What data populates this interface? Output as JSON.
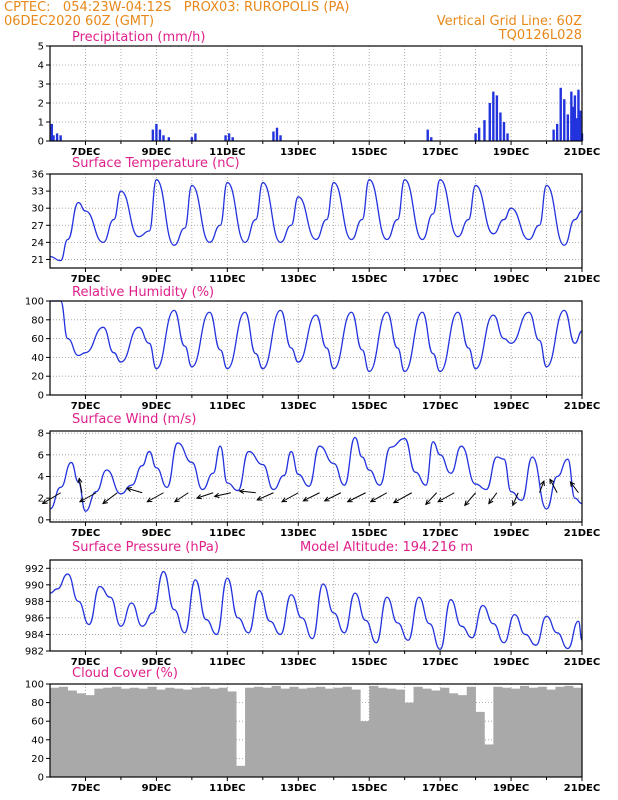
{
  "header": {
    "line1": "CPTEC:   054:23W-04:12S   PROX03: RUROPOLIS (PA)",
    "line2": "06DEC2020 60Z (GMT)",
    "right1": "Vertical Grid Line: 60Z",
    "right2": "TQ0126L028"
  },
  "colors": {
    "header": "#e8881a",
    "title": "#e0208a",
    "line": "#2233dd",
    "cloud": "#a9a9a9",
    "grid": "#9a9a9a"
  },
  "chart_data": [
    {
      "type": "bar",
      "title": "Precipitation (mm/h)",
      "x_range": [
        6.0,
        21.0
      ],
      "x_ticks": [
        "7DEC",
        "9DEC",
        "11DEC",
        "13DEC",
        "15DEC",
        "17DEC",
        "19DEC",
        "21DEC"
      ],
      "ylim": [
        0,
        5
      ],
      "y_ticks": [
        0,
        1,
        2,
        3,
        4,
        5
      ],
      "x": [
        6.05,
        6.1,
        6.2,
        6.3,
        8.9,
        9.0,
        9.1,
        9.2,
        9.35,
        10.0,
        10.1,
        10.95,
        11.05,
        11.15,
        12.3,
        12.4,
        12.5,
        16.65,
        16.75,
        18.0,
        18.1,
        18.25,
        18.4,
        18.5,
        18.6,
        18.7,
        18.8,
        18.9,
        20.2,
        20.3,
        20.4,
        20.5,
        20.6,
        20.7,
        20.75,
        20.8,
        20.85,
        20.9,
        20.95,
        21.0
      ],
      "values": [
        0.9,
        0.3,
        0.4,
        0.3,
        0.6,
        0.9,
        0.6,
        0.3,
        0.2,
        0.2,
        0.4,
        0.3,
        0.4,
        0.2,
        0.5,
        0.7,
        0.3,
        0.6,
        0.2,
        0.4,
        0.7,
        1.1,
        2.0,
        2.6,
        2.4,
        1.5,
        1.0,
        0.4,
        0.6,
        0.9,
        2.8,
        2.2,
        1.4,
        2.6,
        1.8,
        2.4,
        1.2,
        2.7,
        1.6,
        0.4
      ]
    },
    {
      "type": "line",
      "title": "Surface Temperature (nC)",
      "x_range": [
        6.0,
        21.0
      ],
      "x_ticks": [
        "7DEC",
        "9DEC",
        "11DEC",
        "13DEC",
        "15DEC",
        "17DEC",
        "19DEC",
        "21DEC"
      ],
      "ylim": [
        19.5,
        36
      ],
      "y_ticks": [
        21,
        24,
        27,
        30,
        33,
        36
      ],
      "x": [
        6.0,
        6.3,
        6.5,
        6.8,
        7.0,
        7.5,
        7.8,
        8.0,
        8.5,
        8.8,
        9.0,
        9.5,
        9.8,
        10.0,
        10.5,
        10.8,
        11.0,
        11.5,
        11.8,
        12.0,
        12.5,
        12.8,
        13.0,
        13.5,
        13.8,
        14.0,
        14.5,
        14.8,
        15.0,
        15.5,
        15.8,
        16.0,
        16.5,
        16.8,
        17.0,
        17.5,
        17.8,
        18.0,
        18.5,
        18.8,
        19.0,
        19.5,
        19.8,
        20.0,
        20.5,
        20.8,
        21.0
      ],
      "values": [
        21.5,
        20.8,
        24.5,
        31.0,
        29.5,
        24.0,
        28.0,
        33.0,
        25.0,
        26.0,
        35.0,
        23.5,
        26.5,
        34.0,
        24.0,
        27.0,
        34.5,
        24.0,
        28.0,
        34.5,
        24.0,
        27.0,
        32.0,
        24.5,
        28.0,
        34.5,
        24.5,
        28.0,
        35.0,
        24.5,
        28.0,
        35.0,
        24.5,
        29.0,
        35.0,
        25.0,
        28.0,
        34.0,
        25.5,
        28.0,
        30.0,
        24.5,
        27.0,
        34.0,
        23.5,
        28.0,
        29.5
      ]
    },
    {
      "type": "line",
      "title": "Relative Humidity (%)",
      "x_range": [
        6.0,
        21.0
      ],
      "x_ticks": [
        "7DEC",
        "9DEC",
        "11DEC",
        "13DEC",
        "15DEC",
        "17DEC",
        "19DEC",
        "21DEC"
      ],
      "ylim": [
        0,
        100
      ],
      "y_ticks": [
        0,
        20,
        40,
        60,
        80,
        100
      ],
      "x": [
        6.0,
        6.3,
        6.5,
        6.8,
        7.0,
        7.5,
        7.8,
        8.0,
        8.5,
        8.8,
        9.0,
        9.5,
        9.8,
        10.0,
        10.5,
        10.8,
        11.0,
        11.5,
        11.8,
        12.0,
        12.5,
        12.8,
        13.0,
        13.5,
        13.8,
        14.0,
        14.5,
        14.8,
        15.0,
        15.5,
        15.8,
        16.0,
        16.5,
        16.8,
        17.0,
        17.5,
        17.8,
        18.0,
        18.5,
        18.8,
        19.0,
        19.5,
        19.8,
        20.0,
        20.5,
        20.8,
        21.0
      ],
      "values": [
        100,
        100,
        60,
        42,
        45,
        72,
        45,
        35,
        72,
        55,
        28,
        90,
        52,
        30,
        88,
        48,
        28,
        88,
        44,
        28,
        90,
        50,
        35,
        85,
        50,
        28,
        88,
        48,
        25,
        88,
        50,
        25,
        88,
        44,
        25,
        88,
        50,
        28,
        85,
        60,
        55,
        88,
        58,
        30,
        90,
        55,
        68
      ]
    },
    {
      "type": "line",
      "title": "Surface Wind (m/s)",
      "x_range": [
        6.0,
        21.0
      ],
      "x_ticks": [
        "7DEC",
        "9DEC",
        "11DEC",
        "13DEC",
        "15DEC",
        "17DEC",
        "19DEC",
        "21DEC"
      ],
      "ylim": [
        -0.2,
        8.2
      ],
      "y_ticks": [
        0,
        2,
        4,
        6,
        8
      ],
      "x": [
        6.0,
        6.3,
        6.6,
        6.8,
        7.0,
        7.3,
        7.6,
        8.0,
        8.3,
        8.6,
        8.8,
        9.0,
        9.3,
        9.6,
        10.0,
        10.3,
        10.6,
        10.8,
        11.0,
        11.3,
        11.6,
        12.0,
        12.3,
        12.6,
        12.8,
        13.0,
        13.3,
        13.6,
        14.0,
        14.3,
        14.6,
        14.8,
        15.0,
        15.3,
        15.6,
        16.0,
        16.3,
        16.6,
        16.8,
        17.0,
        17.3,
        17.6,
        18.0,
        18.3,
        18.6,
        18.8,
        19.0,
        19.3,
        19.6,
        20.0,
        20.3,
        20.6,
        20.8,
        21.0
      ],
      "values": [
        1.0,
        3.0,
        5.3,
        3.5,
        0.8,
        2.6,
        4.6,
        2.4,
        3.2,
        5.0,
        6.3,
        4.8,
        3.0,
        7.1,
        5.3,
        2.8,
        4.3,
        6.8,
        3.4,
        2.7,
        6.3,
        5.1,
        2.8,
        4.1,
        6.3,
        4.2,
        3.1,
        6.8,
        5.2,
        3.2,
        7.6,
        5.8,
        4.6,
        3.2,
        6.7,
        7.5,
        4.4,
        3.2,
        7.2,
        6.0,
        4.3,
        6.8,
        3.3,
        2.8,
        5.8,
        5.6,
        2.6,
        1.8,
        5.8,
        1.0,
        4.0,
        5.6,
        2.0,
        1.5
      ],
      "wind_barbs": [
        {
          "x": 6.3,
          "u": -2.0,
          "v": -1.2
        },
        {
          "x": 6.9,
          "u": -0.3,
          "v": 1.6
        },
        {
          "x": 7.3,
          "u": -1.8,
          "v": -1.0
        },
        {
          "x": 7.9,
          "u": -1.6,
          "v": -1.2
        },
        {
          "x": 8.6,
          "u": -1.7,
          "v": 0.5
        },
        {
          "x": 9.2,
          "u": -1.8,
          "v": -1.0
        },
        {
          "x": 9.9,
          "u": -1.5,
          "v": -1.0
        },
        {
          "x": 10.6,
          "u": -1.8,
          "v": -0.6
        },
        {
          "x": 11.1,
          "u": -1.8,
          "v": -0.4
        },
        {
          "x": 11.8,
          "u": -1.8,
          "v": 0.2
        },
        {
          "x": 12.3,
          "u": -1.8,
          "v": -0.8
        },
        {
          "x": 13.0,
          "u": -1.8,
          "v": -1.0
        },
        {
          "x": 13.6,
          "u": -1.8,
          "v": -0.9
        },
        {
          "x": 14.2,
          "u": -1.8,
          "v": -0.9
        },
        {
          "x": 14.9,
          "u": -2.0,
          "v": -1.0
        },
        {
          "x": 15.5,
          "u": -1.8,
          "v": -1.0
        },
        {
          "x": 16.2,
          "u": -2.0,
          "v": -1.1
        },
        {
          "x": 16.9,
          "u": -1.2,
          "v": -1.3
        },
        {
          "x": 17.4,
          "u": -1.8,
          "v": -1.0
        },
        {
          "x": 18.0,
          "u": -1.2,
          "v": -1.4
        },
        {
          "x": 18.6,
          "u": -0.9,
          "v": -1.2
        },
        {
          "x": 19.2,
          "u": -0.6,
          "v": -1.4
        },
        {
          "x": 19.8,
          "u": 0.5,
          "v": 1.3
        },
        {
          "x": 20.3,
          "u": -0.8,
          "v": 1.5
        },
        {
          "x": 20.9,
          "u": -0.9,
          "v": 1.2
        }
      ]
    },
    {
      "type": "line",
      "title": "Surface Pressure (hPa)",
      "annotation": "Model Altitude: 194.216 m",
      "x_range": [
        6.0,
        21.0
      ],
      "x_ticks": [
        "7DEC",
        "9DEC",
        "11DEC",
        "13DEC",
        "15DEC",
        "17DEC",
        "19DEC",
        "21DEC"
      ],
      "ylim": [
        982,
        993
      ],
      "y_ticks": [
        982,
        984,
        986,
        988,
        990,
        992
      ],
      "x": [
        6.0,
        6.2,
        6.5,
        6.8,
        7.1,
        7.4,
        7.7,
        8.0,
        8.3,
        8.6,
        8.9,
        9.2,
        9.5,
        9.8,
        10.1,
        10.4,
        10.7,
        11.0,
        11.3,
        11.6,
        11.9,
        12.2,
        12.5,
        12.8,
        13.1,
        13.4,
        13.7,
        14.0,
        14.3,
        14.6,
        14.9,
        15.2,
        15.5,
        15.8,
        16.1,
        16.4,
        16.7,
        17.0,
        17.3,
        17.6,
        17.9,
        18.2,
        18.5,
        18.8,
        19.1,
        19.4,
        19.7,
        20.0,
        20.3,
        20.6,
        20.9,
        21.0
      ],
      "values": [
        989,
        989.5,
        991.3,
        988.0,
        985.2,
        989.8,
        988.5,
        985.0,
        987.8,
        985.0,
        986.6,
        991.6,
        987.0,
        984.2,
        990.6,
        985.8,
        984.0,
        990.8,
        986.0,
        984.2,
        989.3,
        985.6,
        984.0,
        988.8,
        986.0,
        983.5,
        990.1,
        986.6,
        984.2,
        989.0,
        985.7,
        983.0,
        988.5,
        985.4,
        983.3,
        988.5,
        985.3,
        982.2,
        988.2,
        985.0,
        983.6,
        987.5,
        985.3,
        983.0,
        986.4,
        984.0,
        982.7,
        986.2,
        984.2,
        982.3,
        985.6,
        983.3
      ]
    },
    {
      "type": "bar",
      "title": "Cloud Cover (%)",
      "x_range": [
        6.0,
        21.0
      ],
      "x_ticks": [
        "7DEC",
        "9DEC",
        "11DEC",
        "13DEC",
        "15DEC",
        "17DEC",
        "19DEC",
        "21DEC"
      ],
      "ylim": [
        0,
        100
      ],
      "y_ticks": [
        0,
        20,
        40,
        60,
        80,
        100
      ],
      "x": [
        6.0,
        6.25,
        6.5,
        6.75,
        7.0,
        7.25,
        7.5,
        7.75,
        8.0,
        8.25,
        8.5,
        8.75,
        9.0,
        9.25,
        9.5,
        9.75,
        10.0,
        10.25,
        10.5,
        10.75,
        11.0,
        11.25,
        11.5,
        11.75,
        12.0,
        12.25,
        12.5,
        12.75,
        13.0,
        13.25,
        13.5,
        13.75,
        14.0,
        14.25,
        14.5,
        14.75,
        15.0,
        15.25,
        15.5,
        15.75,
        16.0,
        16.25,
        16.5,
        16.75,
        17.0,
        17.25,
        17.5,
        17.75,
        18.0,
        18.25,
        18.5,
        18.75,
        19.0,
        19.25,
        19.5,
        19.75,
        20.0,
        20.25,
        20.5,
        20.75
      ],
      "values": [
        96,
        97,
        93,
        90,
        88,
        95,
        96,
        97,
        95,
        96,
        95,
        97,
        94,
        96,
        95,
        94,
        96,
        97,
        95,
        96,
        92,
        12,
        96,
        97,
        96,
        98,
        95,
        97,
        95,
        96,
        97,
        95,
        96,
        97,
        94,
        60,
        98,
        96,
        95,
        94,
        80,
        97,
        95,
        93,
        96,
        90,
        88,
        97,
        70,
        35,
        97,
        96,
        95,
        98,
        96,
        97,
        94,
        97,
        98,
        96
      ]
    }
  ]
}
